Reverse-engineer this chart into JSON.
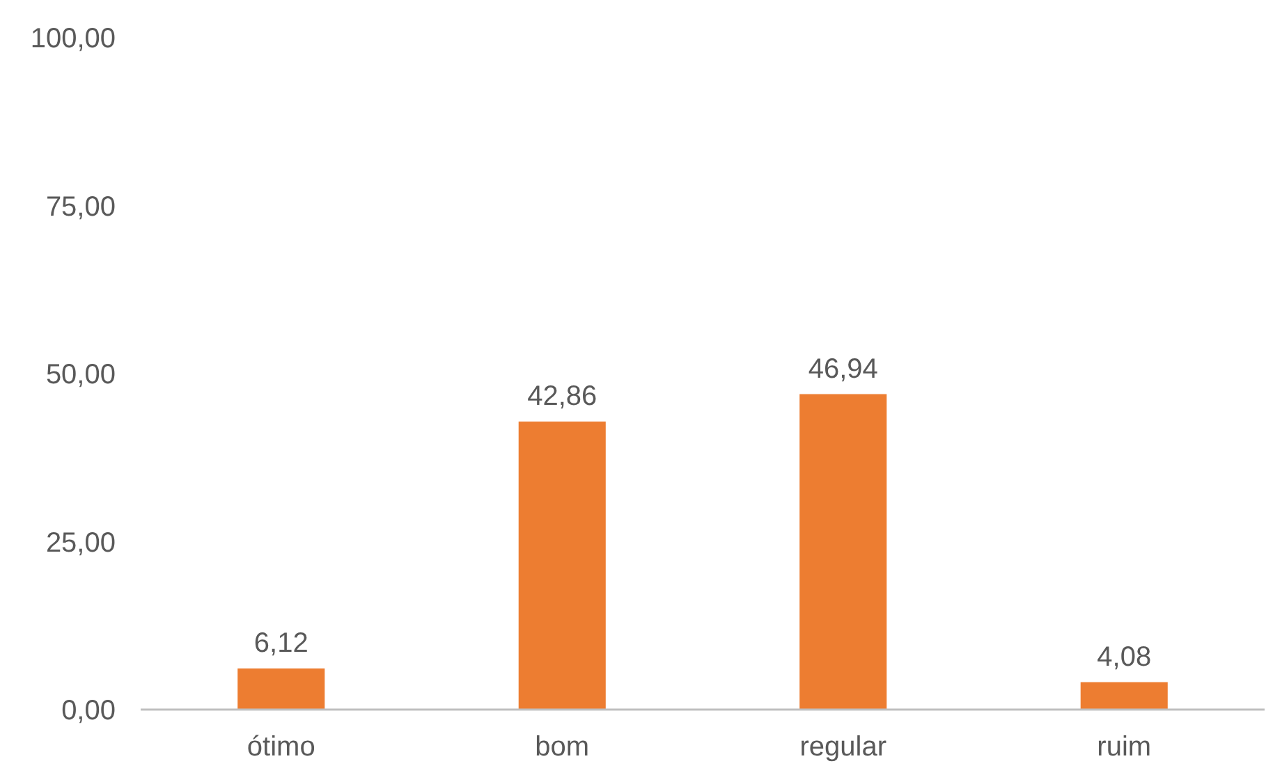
{
  "chart_data": {
    "type": "bar",
    "categories": [
      "ótimo",
      "bom",
      "regular",
      "ruim"
    ],
    "values": [
      6.12,
      42.86,
      46.94,
      4.08
    ],
    "value_labels": [
      "6,12",
      "42,86",
      "46,94",
      "4,08"
    ],
    "color": "#ed7d31",
    "ylim": [
      0,
      100
    ],
    "yticks": [
      {
        "value": 0,
        "label": "0,00"
      },
      {
        "value": 25,
        "label": "25,00"
      },
      {
        "value": 50,
        "label": "50,00"
      },
      {
        "value": 75,
        "label": "75,00"
      },
      {
        "value": 100,
        "label": "100,00"
      }
    ],
    "grid": false
  }
}
